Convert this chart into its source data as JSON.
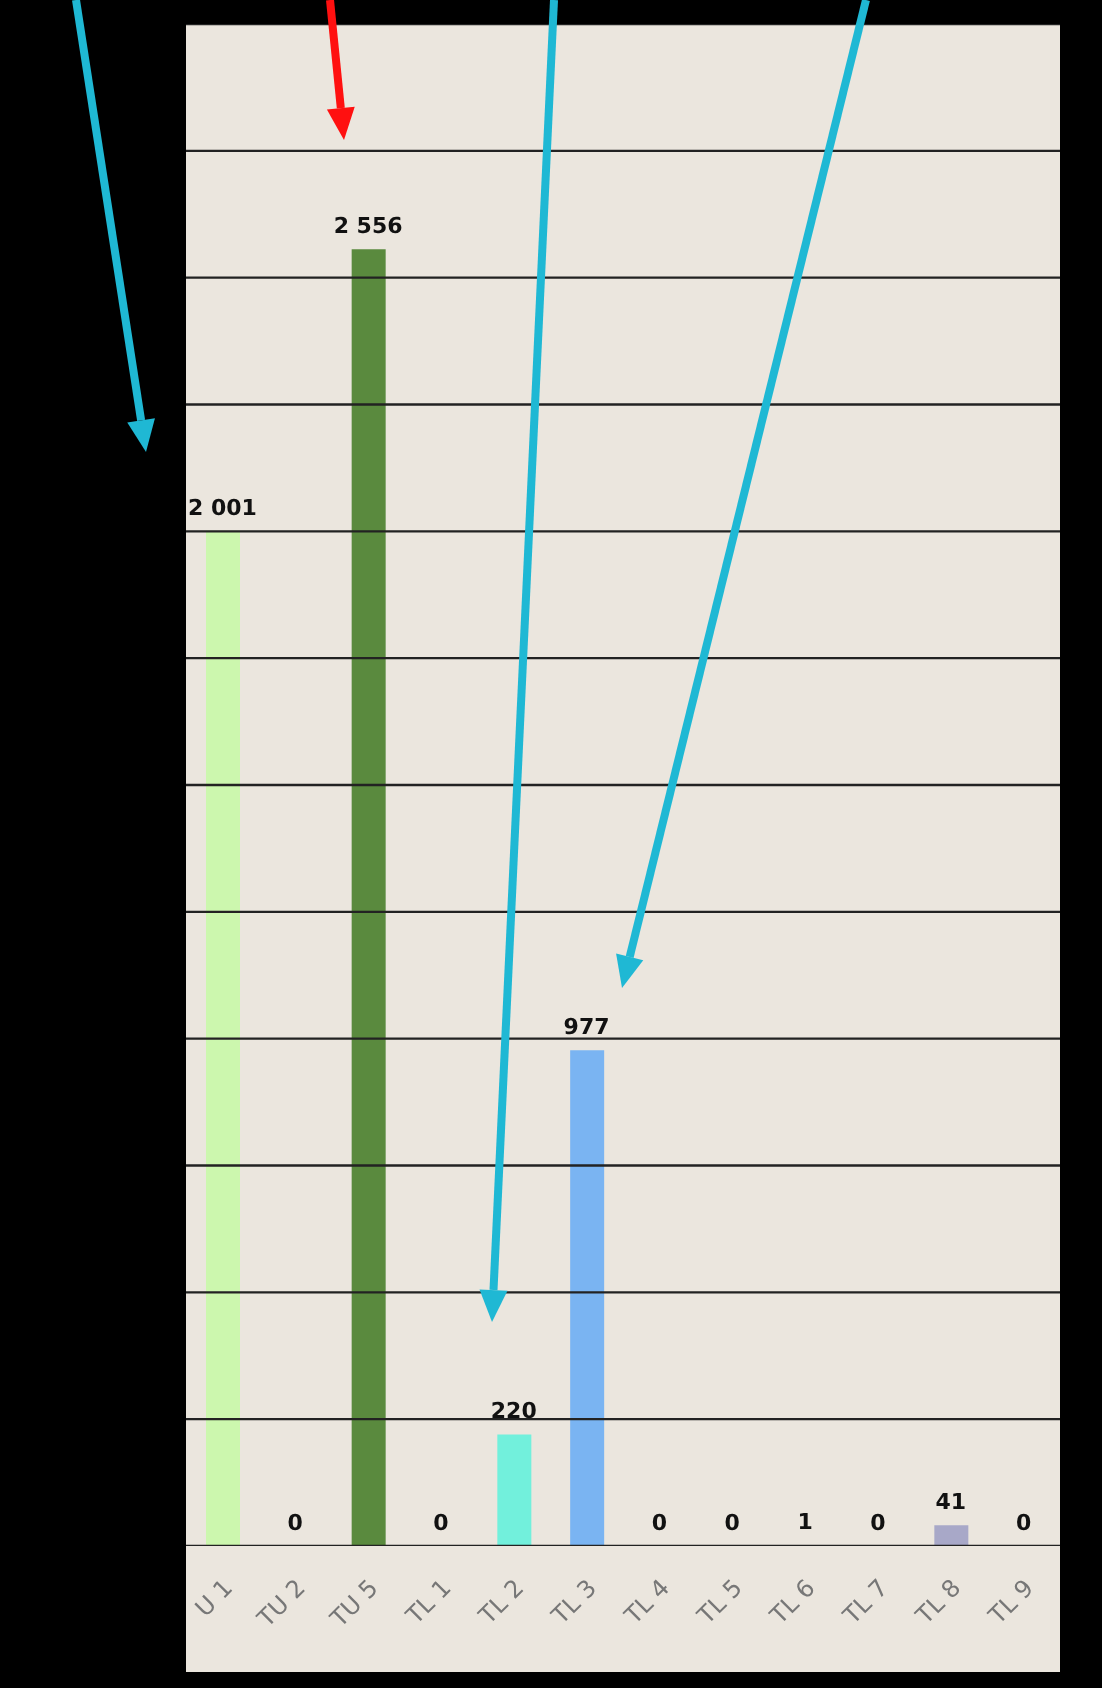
{
  "chart_data": {
    "type": "bar",
    "categories": [
      "U 1",
      "TU 2",
      "TU 5",
      "TL 1",
      "TL 2",
      "TL 3",
      "TL 4",
      "TL 5",
      "TL 6",
      "TL 7",
      "TL 8",
      "TL 9"
    ],
    "values": [
      2001,
      0,
      2556,
      0,
      220,
      977,
      0,
      0,
      1,
      0,
      41,
      0
    ],
    "colors": [
      "#ccf7ae",
      "#ccf7ae",
      "#5a8a3e",
      "#5a8a3e",
      "#72f0dc",
      "#7ab4f2",
      "#7ab4f2",
      "#7ab4f2",
      "#a8a8c8",
      "#a8a8c8",
      "#a8a8c8",
      "#a8a8c8"
    ],
    "value_labels": [
      "2 001",
      "0",
      "2 556",
      "0",
      "220",
      "977",
      "0",
      "0",
      "1",
      "0",
      "41",
      "0"
    ],
    "ylim": [
      0,
      3000
    ],
    "yticks": [
      {
        "value": 0,
        "label": null
      },
      {
        "value": 250,
        "label": null
      },
      {
        "value": 500,
        "label": null
      },
      {
        "value": 750,
        "label": null
      },
      {
        "value": 1000,
        "label": null
      },
      {
        "value": 1250,
        "label": null
      },
      {
        "value": 1500,
        "label": null
      },
      {
        "value": 1750,
        "label": null
      },
      {
        "value": 2000,
        "label": null
      },
      {
        "value": 2250,
        "label": null
      },
      {
        "value": 2500,
        "label": null
      },
      {
        "value": 2750,
        "label": null
      },
      {
        "value": 3000,
        "label": null
      }
    ],
    "grid": "y",
    "tick_labels": "x",
    "legend": false
  }
}
